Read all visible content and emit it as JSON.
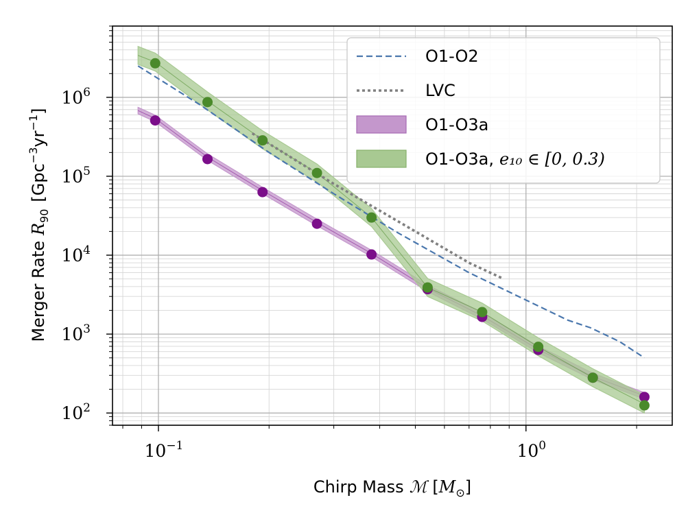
{
  "chart_data": {
    "type": "line",
    "x_scale": "log",
    "y_scale": "log",
    "xlim": [
      0.075,
      2.5
    ],
    "ylim": [
      70,
      8000000
    ],
    "grid": true,
    "legend_position": "top-right",
    "xlabel": {
      "prefix": "Chirp Mass",
      "symbol": "ℳ",
      "unit_open": "[",
      "unit": "M",
      "unit_sub": "⊙",
      "unit_close": "]"
    },
    "ylabel": {
      "prefix": "Merger Rate",
      "symbol": "R",
      "symbol_sub": "90",
      "unit_open": "[Gpc",
      "unit_exp1": "−3",
      "unit_mid": "yr",
      "unit_exp2": "−1",
      "unit_close": "]"
    },
    "x_ticks": [
      {
        "value": 0.1,
        "base": "10",
        "exp": "−1"
      },
      {
        "value": 1.0,
        "base": "10",
        "exp": "0"
      }
    ],
    "y_ticks": [
      {
        "value": 100,
        "base": "10",
        "exp": "2"
      },
      {
        "value": 1000,
        "base": "10",
        "exp": "3"
      },
      {
        "value": 10000,
        "base": "10",
        "exp": "4"
      },
      {
        "value": 100000,
        "base": "10",
        "exp": "5"
      },
      {
        "value": 1000000,
        "base": "10",
        "exp": "6"
      }
    ],
    "series": [
      {
        "name": "O1-O2",
        "style": "dashed-line",
        "color": "#4a77ad",
        "x": [
          0.088,
          0.13,
          0.2,
          0.3,
          0.45,
          0.7,
          1.0,
          1.3,
          1.5,
          1.8,
          2.1
        ],
        "y": [
          2500000,
          800000,
          200000,
          60000,
          19000,
          6000,
          2700,
          1500,
          1200,
          800,
          500
        ]
      },
      {
        "name": "LVC",
        "style": "dotted-line",
        "color": "#808080",
        "x": [
          0.18,
          0.3,
          0.5,
          0.7,
          0.87
        ],
        "y": [
          350000,
          80000,
          20000,
          8000,
          5000
        ]
      },
      {
        "name": "O1-O3a",
        "style": "band-with-points",
        "color": "#7b0e8a",
        "band_color": "#c497cc",
        "band_x": [
          0.088,
          0.098,
          0.136,
          0.192,
          0.27,
          0.38,
          0.54,
          0.76,
          1.08,
          1.52,
          2.1
        ],
        "band_y": [
          680000,
          540000,
          175000,
          66000,
          26000,
          10500,
          3800,
          1700,
          640,
          290,
          165
        ],
        "band_width_factor": 1.1,
        "x": [
          0.098,
          0.136,
          0.192,
          0.27,
          0.38,
          0.54,
          0.76,
          1.08,
          1.52,
          2.1
        ],
        "y": [
          510000,
          165000,
          63000,
          25000,
          10200,
          3700,
          1650,
          630,
          280,
          160
        ]
      },
      {
        "name_prefix": "O1-O3a,",
        "name_math": "e₁₀ ∈ [0, 0.3)",
        "style": "band-with-points",
        "color": "#4a8a2a",
        "band_color": "#a8c992",
        "band_x": [
          0.088,
          0.098,
          0.136,
          0.192,
          0.27,
          0.38,
          0.54,
          0.76,
          1.08,
          1.52,
          2.1
        ],
        "band_y": [
          3400000,
          2800000,
          900000,
          290000,
          110000,
          30000,
          3900,
          1900,
          690,
          280,
          130
        ],
        "band_width_factor": 1.3,
        "x": [
          0.098,
          0.136,
          0.192,
          0.27,
          0.38,
          0.54,
          0.76,
          1.08,
          1.52,
          2.1
        ],
        "y": [
          2700000,
          870000,
          285000,
          110000,
          30000,
          3900,
          1900,
          690,
          280,
          125
        ]
      }
    ]
  }
}
